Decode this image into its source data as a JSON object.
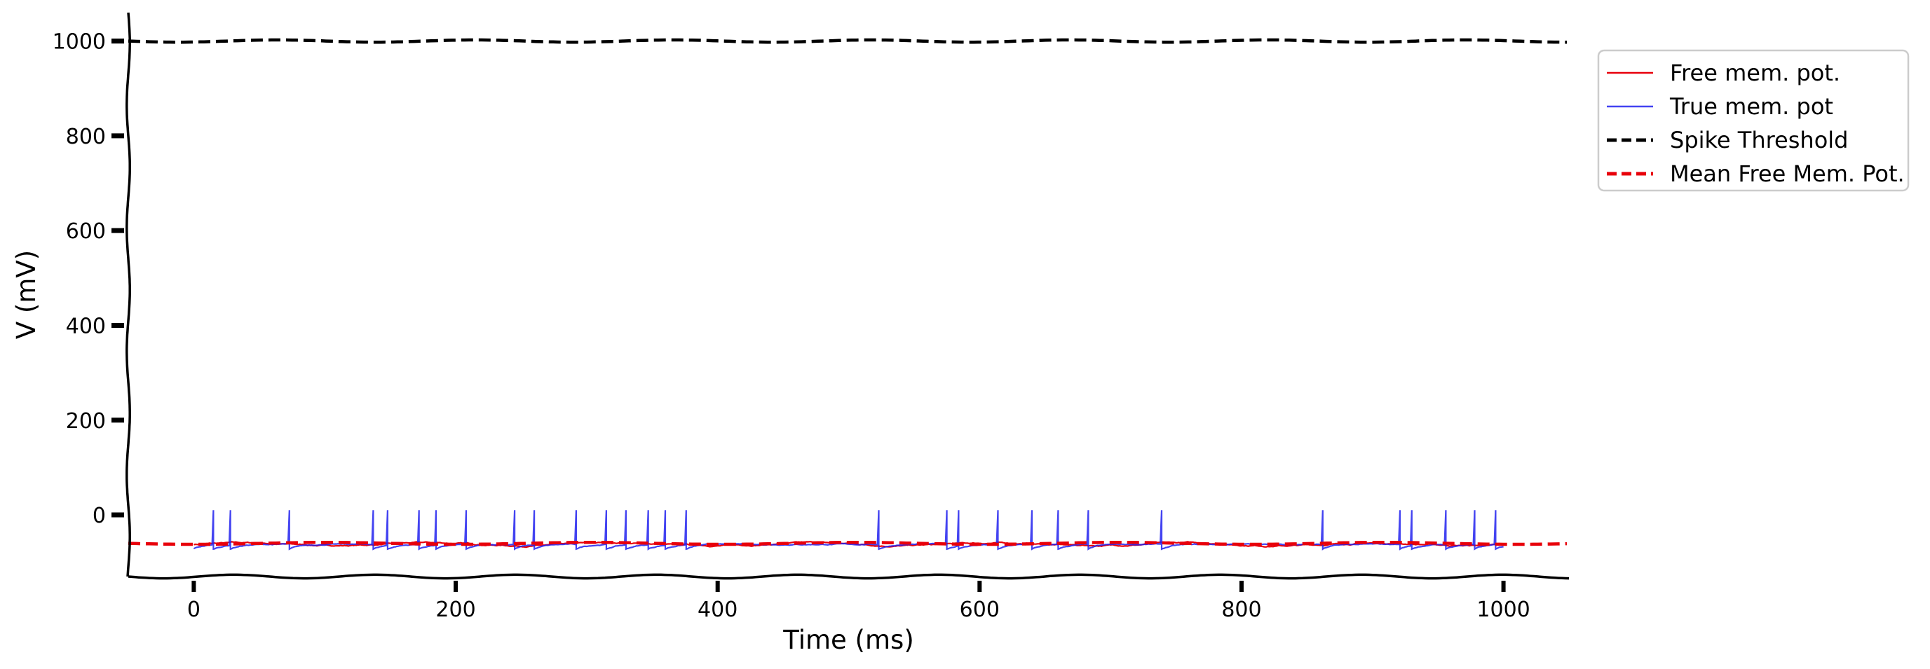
{
  "chart_data": {
    "type": "line",
    "title": "",
    "xlabel": "Time (ms)",
    "ylabel": "V (mV)",
    "xlim": [
      -50,
      1050
    ],
    "ylim": [
      -130,
      1060
    ],
    "xticks": [
      0,
      200,
      400,
      600,
      800,
      1000
    ],
    "yticks": [
      0,
      200,
      400,
      600,
      800,
      1000
    ],
    "grid": false,
    "legend_position": "top-right, outside plot",
    "colors": {
      "free": "#e8000b",
      "true": "#2222ee",
      "threshold": "#000000",
      "mean": "#e8000b"
    },
    "series": [
      {
        "name": "Free mem. pot.",
        "style": "solid",
        "color": "#e8000b",
        "x_range": [
          0,
          1000
        ],
        "baseline": -62,
        "noise_amplitude": 5
      },
      {
        "name": "True mem. pot",
        "style": "solid",
        "color": "#2222ee",
        "x_range": [
          0,
          1000
        ],
        "spike_peak": 10,
        "reset": -72,
        "spike_times": [
          15,
          28,
          73,
          137,
          148,
          172,
          185,
          208,
          245,
          260,
          292,
          315,
          330,
          347,
          360,
          376,
          523,
          575,
          584,
          614,
          640,
          660,
          683,
          739,
          862,
          921,
          930,
          956,
          978,
          994
        ]
      },
      {
        "name": "Spike Threshold",
        "style": "dashed",
        "color": "#000000",
        "y": 1000
      },
      {
        "name": "Mean Free Mem. Pot.",
        "style": "dashed",
        "color": "#e8000b",
        "y": -60
      }
    ]
  }
}
